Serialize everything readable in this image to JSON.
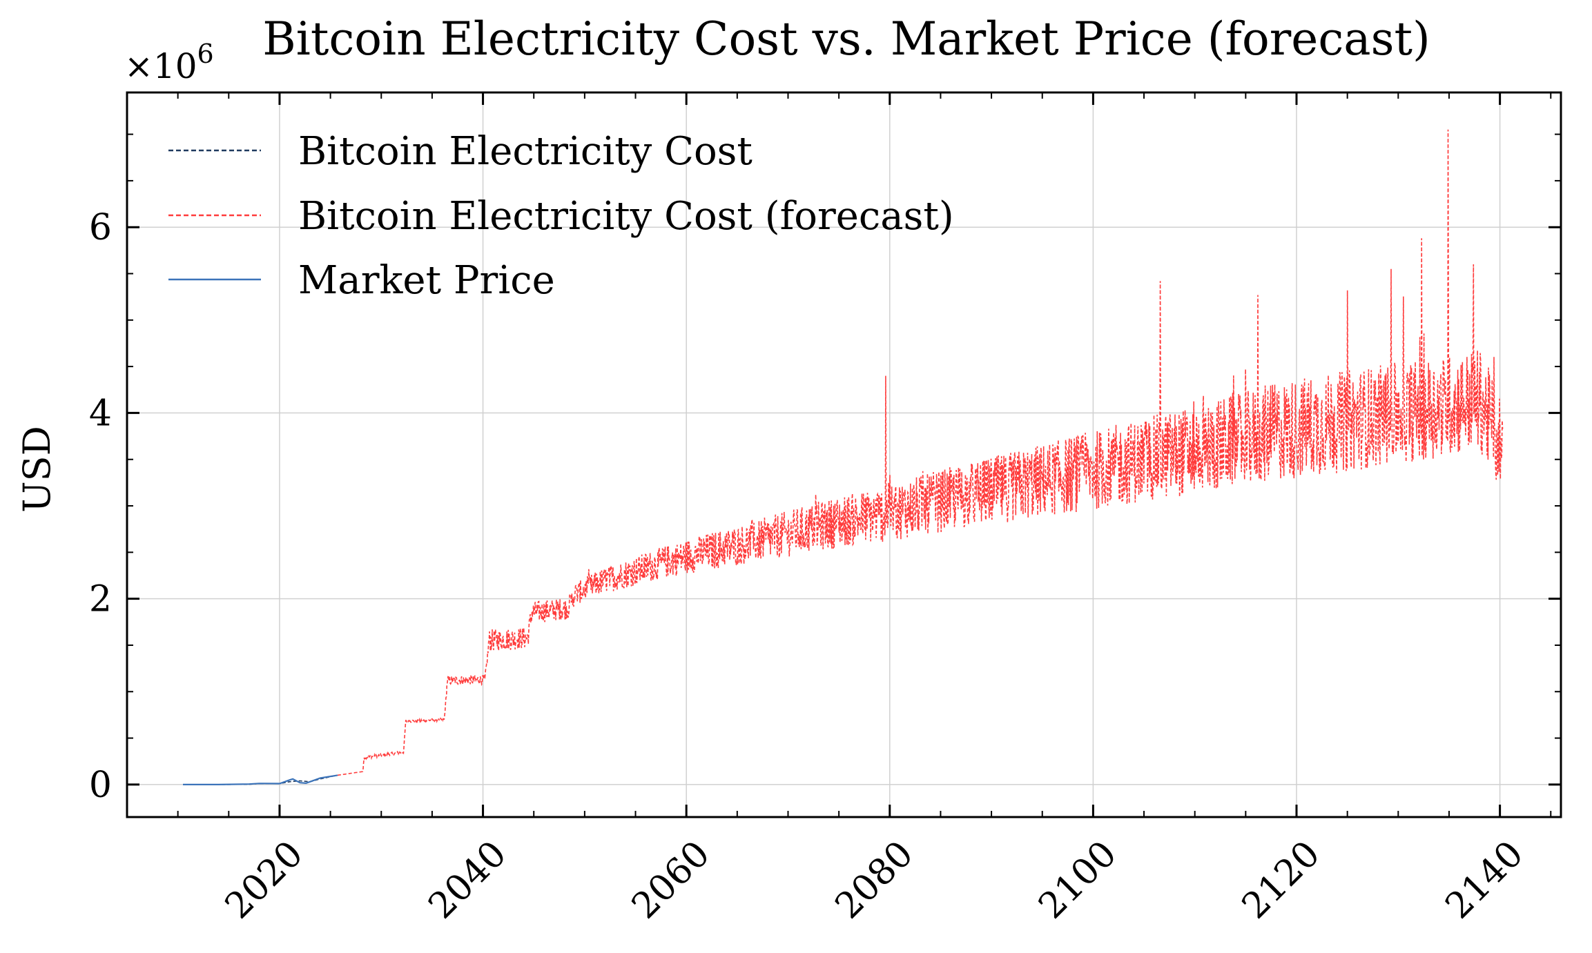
{
  "chart_data": {
    "type": "line",
    "title": "Bitcoin Electricity Cost vs. Market Price (forecast)",
    "xlabel": "",
    "ylabel": "USD",
    "y_offset_label": "×10",
    "y_offset_exponent": "6",
    "xlim": [
      2005.0,
      2146.0
    ],
    "ylim": [
      -0.35,
      7.45
    ],
    "x_ticks": [
      2020,
      2040,
      2060,
      2080,
      2100,
      2120,
      2140
    ],
    "x_tick_labels": [
      "2020",
      "2040",
      "2060",
      "2080",
      "2100",
      "2120",
      "2140"
    ],
    "y_ticks": [
      0,
      2,
      4,
      6
    ],
    "y_tick_labels": [
      "0",
      "2",
      "4",
      "6"
    ],
    "grid": true,
    "legend_position": "top-left",
    "series": [
      {
        "name": "Bitcoin Electricity Cost",
        "color": "#1f3a5f",
        "style": "dashed",
        "x": [
          2010.5,
          2014,
          2017,
          2018,
          2020,
          2021,
          2022,
          2023,
          2024,
          2025.7
        ],
        "y": [
          0.0,
          0.0,
          0.002,
          0.01,
          0.01,
          0.03,
          0.04,
          0.03,
          0.06,
          0.1
        ]
      },
      {
        "name": "Bitcoin Electricity Cost (forecast)",
        "color": "#ff3b3b",
        "style": "dashed",
        "x": [
          2025.7,
          2028.2,
          2028.3,
          2032.2,
          2032.4,
          2036.2,
          2036.5,
          2040.2,
          2040.6,
          2044.4,
          2044.8,
          2048.4,
          2049,
          2052,
          2055,
          2058,
          2061,
          2064,
          2067,
          2070,
          2073,
          2076,
          2079,
          2082,
          2085,
          2088,
          2091,
          2094,
          2097,
          2100,
          2103,
          2106,
          2109,
          2112,
          2115,
          2118,
          2121,
          2124,
          2127,
          2130,
          2133,
          2136,
          2138,
          2140.3
        ],
        "y": [
          0.1,
          0.14,
          0.29,
          0.35,
          0.68,
          0.7,
          1.12,
          1.13,
          1.55,
          1.58,
          1.85,
          1.9,
          2.05,
          2.2,
          2.3,
          2.4,
          2.48,
          2.55,
          2.62,
          2.7,
          2.78,
          2.85,
          2.9,
          2.98,
          3.05,
          3.12,
          3.18,
          3.25,
          3.32,
          3.38,
          3.45,
          3.52,
          3.58,
          3.65,
          3.72,
          3.8,
          3.85,
          3.9,
          3.95,
          4.0,
          4.05,
          4.1,
          4.15,
          3.6
        ],
        "spikes": [
          {
            "x": 2079.6,
            "y": 4.4
          },
          {
            "x": 2106.6,
            "y": 5.42
          },
          {
            "x": 2116.2,
            "y": 5.27
          },
          {
            "x": 2125.0,
            "y": 5.32
          },
          {
            "x": 2129.3,
            "y": 5.55
          },
          {
            "x": 2132.3,
            "y": 5.88
          },
          {
            "x": 2134.9,
            "y": 7.05
          },
          {
            "x": 2137.4,
            "y": 5.6
          }
        ]
      },
      {
        "name": "Market Price",
        "color": "#3b73b9",
        "style": "solid",
        "x": [
          2010.5,
          2014,
          2017,
          2018,
          2020,
          2021,
          2021.3,
          2022,
          2022.6,
          2023,
          2024,
          2025.7
        ],
        "y": [
          0.0,
          0.0,
          0.005,
          0.012,
          0.01,
          0.05,
          0.06,
          0.02,
          0.015,
          0.03,
          0.07,
          0.1
        ]
      }
    ]
  }
}
